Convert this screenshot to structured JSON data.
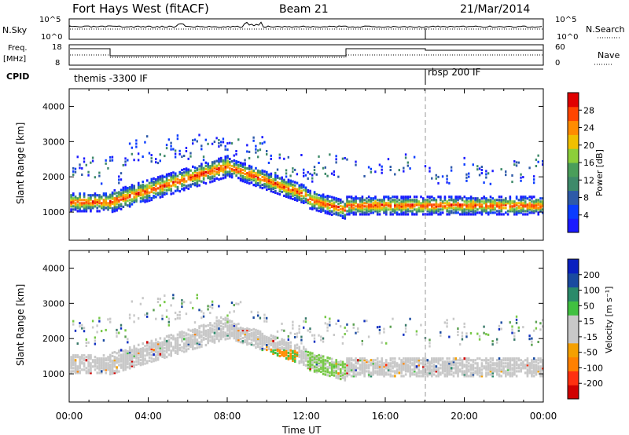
{
  "header": {
    "title": "Fort Hays West (fitACF)",
    "beam": "Beam 21",
    "date": "21/Mar/2014"
  },
  "top_panels": {
    "nsky_label": "N.Sky",
    "nsky_ticks": [
      "10^5",
      "10^0"
    ],
    "nsearch_label": "N.Search",
    "nsearch_ticks": [
      "10^5",
      "10^0"
    ],
    "freq_label": "Freq.",
    "freq_unit": "[MHz]",
    "freq_ticks": [
      "18",
      "8"
    ],
    "nave_label": "Nave",
    "nave_ticks": [
      "60",
      "0"
    ],
    "cpid_label": "CPID",
    "cpid_segments": [
      "themis -3300 IF",
      "rbsp 200 IF"
    ]
  },
  "colors": {
    "power": [
      "#1a1aff",
      "#0a3cff",
      "#2e5aa8",
      "#3e8a6a",
      "#4a9e5a",
      "#8ccf3a",
      "#f0c000",
      "#ff8c00",
      "#ff4500",
      "#e00000"
    ],
    "velocity": [
      "#d00000",
      "#ff3010",
      "#ff8000",
      "#f5a000",
      "#c8c8c8",
      "#c8c8c8",
      "#40c040",
      "#2a8a6a",
      "#1a4aa0",
      "#0a20c0"
    ],
    "velocity_pos": [
      "#1030c0",
      "#1a4aa0",
      "#3a7a6a",
      "#5aa050",
      "#78c848"
    ]
  },
  "chart_data": [
    {
      "type": "heatmap",
      "name": "power",
      "ylabel": "Slant Range [km]",
      "yticks": [
        "1000",
        "2000",
        "3000",
        "4000"
      ],
      "ylim": [
        200,
        4500
      ],
      "xticks": [
        "00:00",
        "04:00",
        "08:00",
        "12:00",
        "16:00",
        "20:00",
        "00:00"
      ],
      "xlim_hours": [
        0,
        24
      ],
      "colorbar": {
        "label": "Power [dB]",
        "ticks": [
          "4",
          "8",
          "12",
          "16",
          "20",
          "24",
          "28"
        ],
        "range": [
          0,
          30
        ]
      }
    },
    {
      "type": "heatmap",
      "name": "velocity",
      "ylabel": "Slant Range [km]",
      "yticks": [
        "1000",
        "2000",
        "3000",
        "4000"
      ],
      "ylim": [
        200,
        4500
      ],
      "xticks": [
        "00:00",
        "04:00",
        "08:00",
        "12:00",
        "16:00",
        "20:00",
        "00:00"
      ],
      "xlabel": "Time UT",
      "xlim_hours": [
        0,
        24
      ],
      "colorbar": {
        "label": "Velocity [m s⁻¹]",
        "ticks": [
          "200",
          "100",
          "50",
          "15",
          "-15",
          "-50",
          "-100",
          "-200"
        ],
        "range": [
          -250,
          250
        ]
      }
    }
  ]
}
